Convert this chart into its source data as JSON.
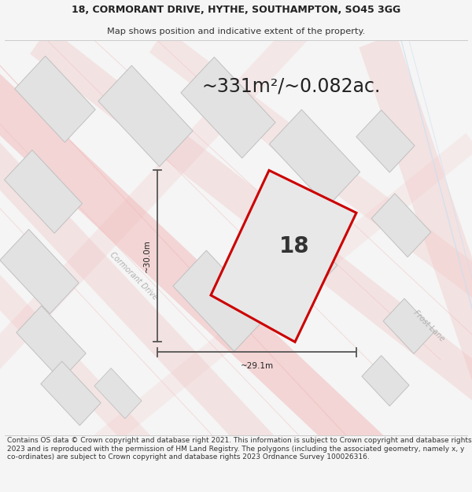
{
  "title_line1": "18, CORMORANT DRIVE, HYTHE, SOUTHAMPTON, SO45 3GG",
  "title_line2": "Map shows position and indicative extent of the property.",
  "area_text": "~331m²/~0.082ac.",
  "number_label": "18",
  "dim_vertical": "~30.0m",
  "dim_horizontal": "~29.1m",
  "road_label1": "Cormorant Drive",
  "road_label2": "Frost Lane",
  "footer_text": "Contains OS data © Crown copyright and database right 2021. This information is subject to Crown copyright and database rights 2023 and is reproduced with the permission of HM Land Registry. The polygons (including the associated geometry, namely x, y co-ordinates) are subject to Crown copyright and database rights 2023 Ordnance Survey 100026316.",
  "bg_color": "#f5f5f5",
  "map_bg": "#ffffff",
  "plot_fill": "#e8e8e8",
  "plot_edge": "#cc0000",
  "road_color": "#f2c0c0",
  "road_color2": "#c8dff0",
  "building_fill": "#e2e2e2",
  "building_edge": "#c0c0c0",
  "dim_line_color": "#555555",
  "title_fontsize": 9.0,
  "subtitle_fontsize": 8.2,
  "area_fontsize": 17,
  "number_fontsize": 20,
  "footer_fontsize": 6.5
}
